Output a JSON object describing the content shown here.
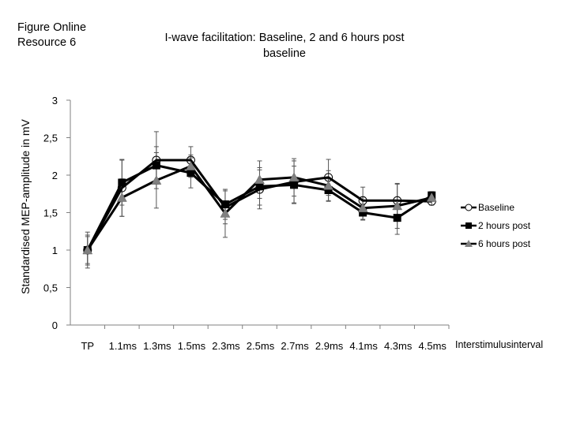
{
  "figure_label": [
    "Figure Online",
    "Resource 6"
  ],
  "title": [
    "I-wave facilitation: Baseline, 2 and 6 hours post",
    "baseline"
  ],
  "chart_data": {
    "type": "line",
    "title": "I-wave facilitation: Baseline, 2 and 6 hours post baseline",
    "xlabel": "Interstimulusinterval",
    "ylabel": "Standardised MEP-amplitude in mV",
    "categories": [
      "TP",
      "1.1ms",
      "1.3ms",
      "1.5ms",
      "2.3ms",
      "2.5ms",
      "2.7ms",
      "2.9ms",
      "4.1ms",
      "4.3ms",
      "4.5ms"
    ],
    "ylim": [
      0,
      3
    ],
    "yticks": [
      0,
      0.5,
      1,
      1.5,
      2,
      2.5,
      3
    ],
    "ytick_labels": [
      "0",
      "0,5",
      "1",
      "1,5",
      "2",
      "2,5",
      "3"
    ],
    "grid": false,
    "legend_position": "right",
    "series": [
      {
        "name": "Baseline",
        "marker": "open-circle",
        "values": [
          1.0,
          1.83,
          2.2,
          2.2,
          1.57,
          1.81,
          1.91,
          1.97,
          1.66,
          1.66,
          1.65
        ],
        "error": [
          0.24,
          0.38,
          0.38,
          0.18,
          0.22,
          0.26,
          0.28,
          0.24,
          0.18,
          0.22,
          0.05
        ]
      },
      {
        "name": "2 hours post",
        "marker": "filled-square",
        "values": [
          1.0,
          1.9,
          2.13,
          2.03,
          1.61,
          1.85,
          1.87,
          1.8,
          1.5,
          1.43,
          1.73
        ],
        "error": [
          0.2,
          0.3,
          0.25,
          0.2,
          0.2,
          0.25,
          0.25,
          0.15,
          0.1,
          0.22,
          0.05
        ]
      },
      {
        "name": "6 hours post",
        "marker": "gray-triangle",
        "values": [
          1.0,
          1.7,
          1.93,
          2.12,
          1.49,
          1.94,
          1.97,
          1.86,
          1.56,
          1.59,
          1.7
        ],
        "error": [
          0.18,
          0.25,
          0.37,
          0.15,
          0.32,
          0.25,
          0.25,
          0.2,
          0.15,
          0.3,
          0.05
        ]
      }
    ]
  },
  "colors": {
    "line": "#000000",
    "triangle_fill": "#808080",
    "axis": "#808080",
    "errorbar": "#555555"
  }
}
